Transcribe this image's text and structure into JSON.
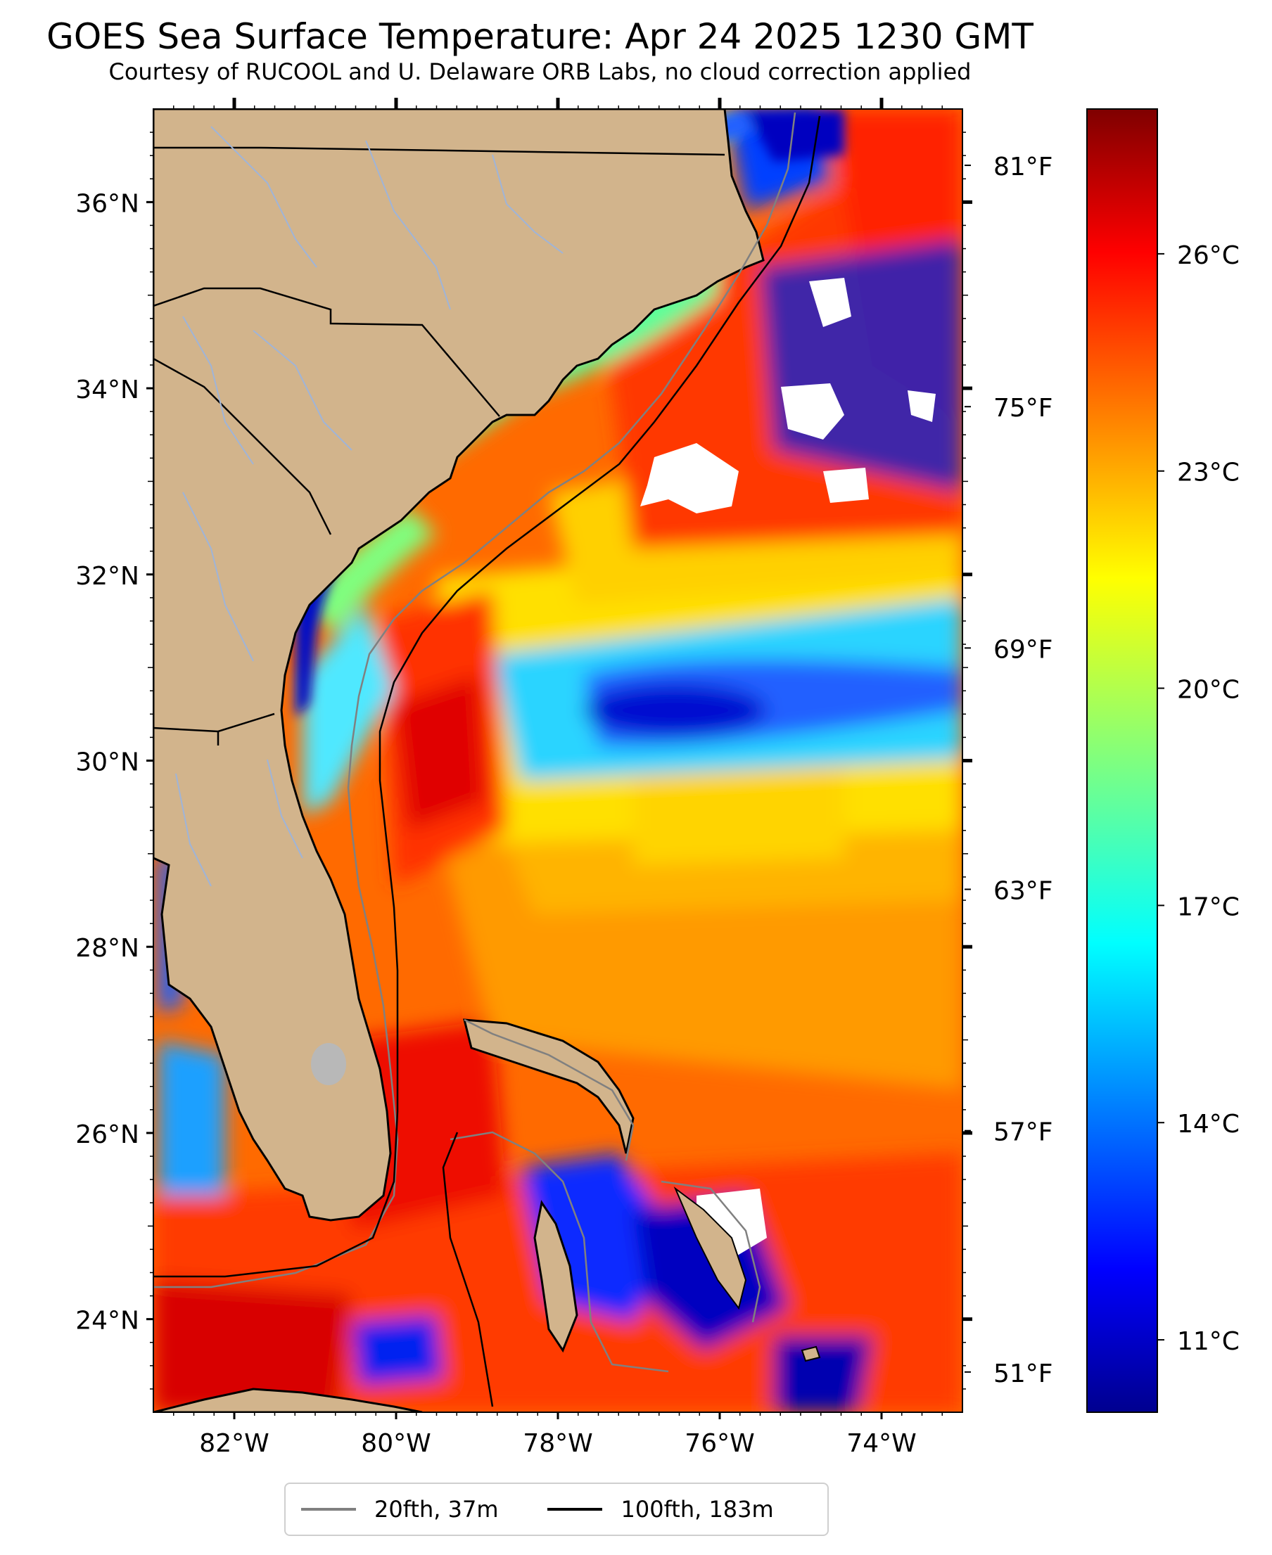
{
  "title": "GOES Sea Surface Temperature: Apr 24 2025 1230 GMT",
  "subtitle": "Courtesy of RUCOOL and U. Delaware ORB Labs, no cloud correction applied",
  "map": {
    "lon_range": [
      -83.0,
      -73.0
    ],
    "lat_range": [
      23.0,
      37.0
    ],
    "lat_ticks": [
      {
        "value": 24,
        "label": "24°N"
      },
      {
        "value": 26,
        "label": "26°N"
      },
      {
        "value": 28,
        "label": "28°N"
      },
      {
        "value": 30,
        "label": "30°N"
      },
      {
        "value": 32,
        "label": "32°N"
      },
      {
        "value": 34,
        "label": "34°N"
      },
      {
        "value": 36,
        "label": "36°N"
      }
    ],
    "lon_ticks": [
      {
        "value": -82,
        "label": "82°W"
      },
      {
        "value": -80,
        "label": "80°W"
      },
      {
        "value": -78,
        "label": "78°W"
      },
      {
        "value": -76,
        "label": "76°W"
      },
      {
        "value": -74,
        "label": "74°W"
      }
    ],
    "land_color": "#d2b48c",
    "ocean_base_color": "#ff6a00",
    "cloud_color": "#ffffff"
  },
  "fahrenheit_axis": {
    "ticks": [
      {
        "value": 51,
        "label": "51°F"
      },
      {
        "value": 57,
        "label": "57°F"
      },
      {
        "value": 63,
        "label": "63°F"
      },
      {
        "value": 69,
        "label": "69°F"
      },
      {
        "value": 75,
        "label": "75°F"
      },
      {
        "value": 81,
        "label": "81°F"
      }
    ]
  },
  "colorbar": {
    "colormap": "jet",
    "range_c": [
      10.0,
      28.0
    ],
    "ticks": [
      {
        "value": 11,
        "label": "11°C"
      },
      {
        "value": 14,
        "label": "14°C"
      },
      {
        "value": 17,
        "label": "17°C"
      },
      {
        "value": 20,
        "label": "20°C"
      },
      {
        "value": 23,
        "label": "23°C"
      },
      {
        "value": 26,
        "label": "26°C"
      }
    ]
  },
  "legend": {
    "items": [
      {
        "label": "20fth, 37m",
        "color": "#808080"
      },
      {
        "label": "100fth, 183m",
        "color": "#000000"
      }
    ]
  }
}
